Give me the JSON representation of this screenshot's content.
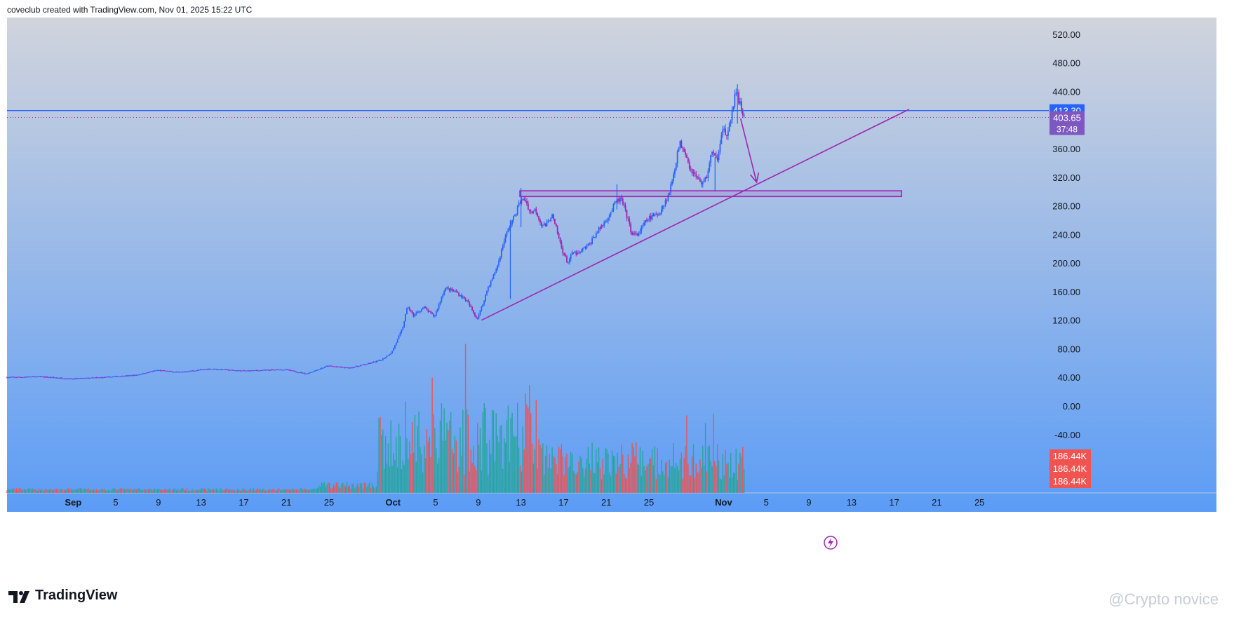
{
  "header": {
    "caption": "coveclub created with TradingView.com, Nov 01, 2025 15:22 UTC"
  },
  "brand": {
    "name": "TradingView"
  },
  "watermark": {
    "text": "@Crypto novice"
  },
  "colors": {
    "bg_top": "#d1d4dc",
    "bg_bottom": "#5b9cf6",
    "candle_up": "#2962ff",
    "candle_down": "#9c27b0",
    "vol_up": "#26a69a",
    "vol_down": "#ef5350",
    "drawing": "#9c27b0",
    "hline": "#2962ff",
    "price_label_blue": "#2962ff",
    "price_label_purple": "#7e57c2",
    "vol_label": "#f05350"
  },
  "chart_data": {
    "type": "candlestick",
    "symbol": "",
    "y_axis": {
      "range": [
        -70,
        540
      ],
      "ticks": [
        "520.00",
        "480.00",
        "440.00",
        "400.00",
        "360.00",
        "320.00",
        "280.00",
        "240.00",
        "200.00",
        "160.00",
        "120.00",
        "80.00",
        "40.00",
        "0.00",
        "-40.00"
      ],
      "tick_values": [
        520,
        480,
        440,
        400,
        360,
        320,
        280,
        240,
        200,
        160,
        120,
        80,
        40,
        0,
        -40
      ]
    },
    "x_axis": {
      "ticks": [
        {
          "label": "Sep",
          "day": 0,
          "bold": true
        },
        {
          "label": "5",
          "day": 4
        },
        {
          "label": "9",
          "day": 8
        },
        {
          "label": "13",
          "day": 12
        },
        {
          "label": "17",
          "day": 16
        },
        {
          "label": "21",
          "day": 20
        },
        {
          "label": "25",
          "day": 24
        },
        {
          "label": "Oct",
          "day": 30,
          "bold": true
        },
        {
          "label": "5",
          "day": 34
        },
        {
          "label": "9",
          "day": 38
        },
        {
          "label": "13",
          "day": 42
        },
        {
          "label": "17",
          "day": 46
        },
        {
          "label": "21",
          "day": 50
        },
        {
          "label": "25",
          "day": 54
        },
        {
          "label": "Nov",
          "day": 61,
          "bold": true
        },
        {
          "label": "5",
          "day": 65
        },
        {
          "label": "9",
          "day": 69
        },
        {
          "label": "13",
          "day": 73
        },
        {
          "label": "17",
          "day": 77
        },
        {
          "label": "21",
          "day": 81
        },
        {
          "label": "25",
          "day": 85
        }
      ],
      "day_range": [
        -6.2,
        91.5
      ]
    },
    "price_path": [
      [
        -6.2,
        40
      ],
      [
        -3,
        41
      ],
      [
        0,
        38
      ],
      [
        3,
        40
      ],
      [
        6,
        43
      ],
      [
        8,
        50
      ],
      [
        10,
        47
      ],
      [
        13,
        52
      ],
      [
        16,
        49
      ],
      [
        20,
        51
      ],
      [
        22,
        45
      ],
      [
        24,
        56
      ],
      [
        26,
        53
      ],
      [
        27.5,
        58
      ],
      [
        29,
        64
      ],
      [
        30,
        75
      ],
      [
        31,
        108
      ],
      [
        31.5,
        140
      ],
      [
        32,
        126
      ],
      [
        33,
        138
      ],
      [
        34,
        125
      ],
      [
        35,
        165
      ],
      [
        36,
        160
      ],
      [
        37,
        148
      ],
      [
        37.7,
        130
      ],
      [
        38,
        122
      ],
      [
        38.5,
        140
      ],
      [
        39,
        165
      ],
      [
        39.5,
        180
      ],
      [
        40,
        200
      ],
      [
        40.5,
        230
      ],
      [
        41,
        250
      ],
      [
        41.5,
        265
      ],
      [
        42,
        285
      ],
      [
        42.5,
        290
      ],
      [
        43,
        270
      ],
      [
        43.5,
        275
      ],
      [
        44,
        255
      ],
      [
        44.5,
        252
      ],
      [
        45,
        268
      ],
      [
        45.5,
        244
      ],
      [
        46,
        218
      ],
      [
        46.5,
        200
      ],
      [
        47,
        215
      ],
      [
        47.5,
        212
      ],
      [
        48,
        220
      ],
      [
        48.5,
        225
      ],
      [
        49,
        238
      ],
      [
        49.5,
        248
      ],
      [
        50,
        258
      ],
      [
        50.5,
        270
      ],
      [
        51,
        285
      ],
      [
        51.5,
        290
      ],
      [
        52,
        268
      ],
      [
        52.5,
        242
      ],
      [
        53,
        238
      ],
      [
        53.5,
        250
      ],
      [
        54,
        262
      ],
      [
        55,
        268
      ],
      [
        55.5,
        282
      ],
      [
        56,
        296
      ],
      [
        56.5,
        330
      ],
      [
        57,
        368
      ],
      [
        57.5,
        358
      ],
      [
        58,
        332
      ],
      [
        58.5,
        322
      ],
      [
        59,
        312
      ],
      [
        59.5,
        318
      ],
      [
        60,
        355
      ],
      [
        60.5,
        343
      ],
      [
        61,
        390
      ],
      [
        61.5,
        375
      ],
      [
        62,
        420
      ],
      [
        62.3,
        440
      ],
      [
        62.6,
        425
      ],
      [
        63,
        405
      ]
    ],
    "spikes": [
      [
        41,
        150,
        260
      ],
      [
        42,
        250,
        305
      ],
      [
        51,
        275,
        310
      ],
      [
        62.3,
        395,
        450
      ],
      [
        60.2,
        300,
        348
      ]
    ],
    "volume": {
      "last_labels": [
        "186.44K",
        "186.44K",
        "186.44K"
      ]
    },
    "price_labels": {
      "level": "413.30",
      "last": "403.65",
      "countdown": "37:48"
    },
    "annotations": {
      "horizontal_line": 413.3,
      "last_price_dotted": 403.65,
      "trendline": [
        [
          38.3,
          120
        ],
        [
          78.4,
          415
        ]
      ],
      "zone": {
        "day_start": 41.9,
        "day_end": 77.7,
        "low": 293,
        "high": 301
      },
      "arrow": {
        "from": [
          62.6,
          402
        ],
        "to": [
          64.1,
          313
        ]
      }
    },
    "grid": false,
    "legend": "none"
  }
}
